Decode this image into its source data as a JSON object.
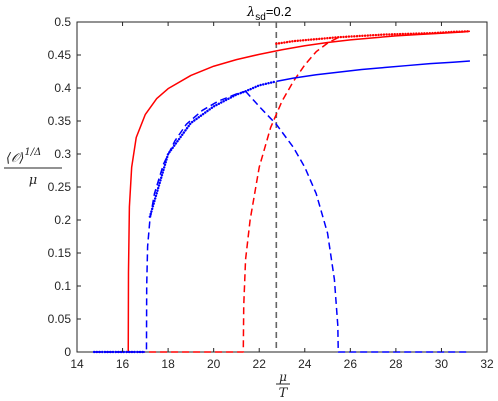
{
  "chart_data": {
    "type": "line",
    "title_symbol": "λ",
    "title_subscript": "sd",
    "title_value": "=0.2",
    "xlabel_numerator": "μ",
    "xlabel_denominator": "T",
    "ylabel_numerator": "⟨𝒪⟩",
    "ylabel_exponent": "1/Δ",
    "ylabel_denominator": "μ",
    "xlim": [
      14,
      32
    ],
    "ylim": [
      0,
      0.5
    ],
    "xticks": [
      "14",
      "16",
      "18",
      "20",
      "22",
      "24",
      "26",
      "28",
      "30",
      "32"
    ],
    "yticks": [
      "0",
      "0.05",
      "0.1",
      "0.15",
      "0.2",
      "0.25",
      "0.3",
      "0.35",
      "0.4",
      "0.45",
      "0.5"
    ],
    "grid": false,
    "vertical_marker_x": 22.75,
    "series": [
      {
        "color": "#ff0000",
        "style": "solid",
        "x": [
          16.25,
          16.26,
          16.3,
          16.4,
          16.6,
          17.0,
          17.5,
          18.0,
          19.0,
          20.0,
          21.0,
          22.0,
          23.0,
          24.0,
          25.0,
          26.0,
          27.0,
          28.0,
          29.0,
          30.0,
          31.0,
          31.25
        ],
        "y": [
          0,
          0.12,
          0.22,
          0.28,
          0.325,
          0.36,
          0.384,
          0.399,
          0.419,
          0.433,
          0.443,
          0.451,
          0.458,
          0.464,
          0.469,
          0.473,
          0.476,
          0.479,
          0.481,
          0.483,
          0.485,
          0.486
        ]
      },
      {
        "color": "#ff0000",
        "style": "dashed",
        "x": [
          14.75,
          16,
          18,
          20,
          21.3,
          21.32,
          21.4,
          21.6,
          22.0,
          22.5,
          23.0,
          23.5,
          24.0,
          24.5,
          25.0,
          25.5
        ],
        "y": [
          0,
          0,
          0,
          0,
          0,
          0.07,
          0.14,
          0.2,
          0.28,
          0.34,
          0.38,
          0.41,
          0.435,
          0.455,
          0.468,
          0.477
        ]
      },
      {
        "color": "#ff0000",
        "style": "dotted",
        "x": [
          22.75,
          23.5,
          24.5,
          25.5,
          26.5,
          27.5,
          28.5,
          29.5,
          30.5,
          31.25
        ],
        "y": [
          0.467,
          0.471,
          0.474,
          0.477,
          0.479,
          0.481,
          0.482,
          0.483,
          0.485,
          0.486
        ]
      },
      {
        "color": "#0000ff",
        "style": "solid",
        "x": [
          22.75,
          23.5,
          24.5,
          25.5,
          26.5,
          27.5,
          28.5,
          29.5,
          30.5,
          31.25
        ],
        "y": [
          0.41,
          0.415,
          0.42,
          0.424,
          0.428,
          0.431,
          0.434,
          0.437,
          0.439,
          0.441
        ]
      },
      {
        "color": "#0000ff",
        "style": "dashed",
        "x": [
          14.75,
          16,
          17.05,
          17.06,
          17.1,
          17.2,
          17.4,
          17.8,
          18.3,
          18.8,
          19.5,
          20.2,
          21.0,
          21.4
        ],
        "y": [
          0,
          0,
          0,
          0.1,
          0.16,
          0.2,
          0.24,
          0.285,
          0.32,
          0.345,
          0.366,
          0.38,
          0.391,
          0.395
        ]
      },
      {
        "color": "#0000ff",
        "style": "dashed",
        "x": [
          21.4,
          22.0,
          22.75,
          23.5,
          24.0,
          24.5,
          25.0,
          25.3,
          25.45,
          25.47,
          26,
          28,
          30,
          31.25
        ],
        "y": [
          0.395,
          0.372,
          0.345,
          0.31,
          0.28,
          0.24,
          0.18,
          0.11,
          0.04,
          0,
          0,
          0,
          0,
          0
        ]
      },
      {
        "color": "#0000ff",
        "style": "dotted",
        "x": [
          14.75,
          15.5,
          16.3,
          17.0
        ],
        "y": [
          0,
          0,
          0,
          0
        ]
      },
      {
        "color": "#0000ff",
        "style": "dotted",
        "x": [
          17.2,
          18.0,
          19.0,
          20.0,
          21.0,
          21.4,
          22.0,
          22.75
        ],
        "y": [
          0.205,
          0.3,
          0.347,
          0.372,
          0.39,
          0.395,
          0.404,
          0.41
        ]
      }
    ]
  }
}
